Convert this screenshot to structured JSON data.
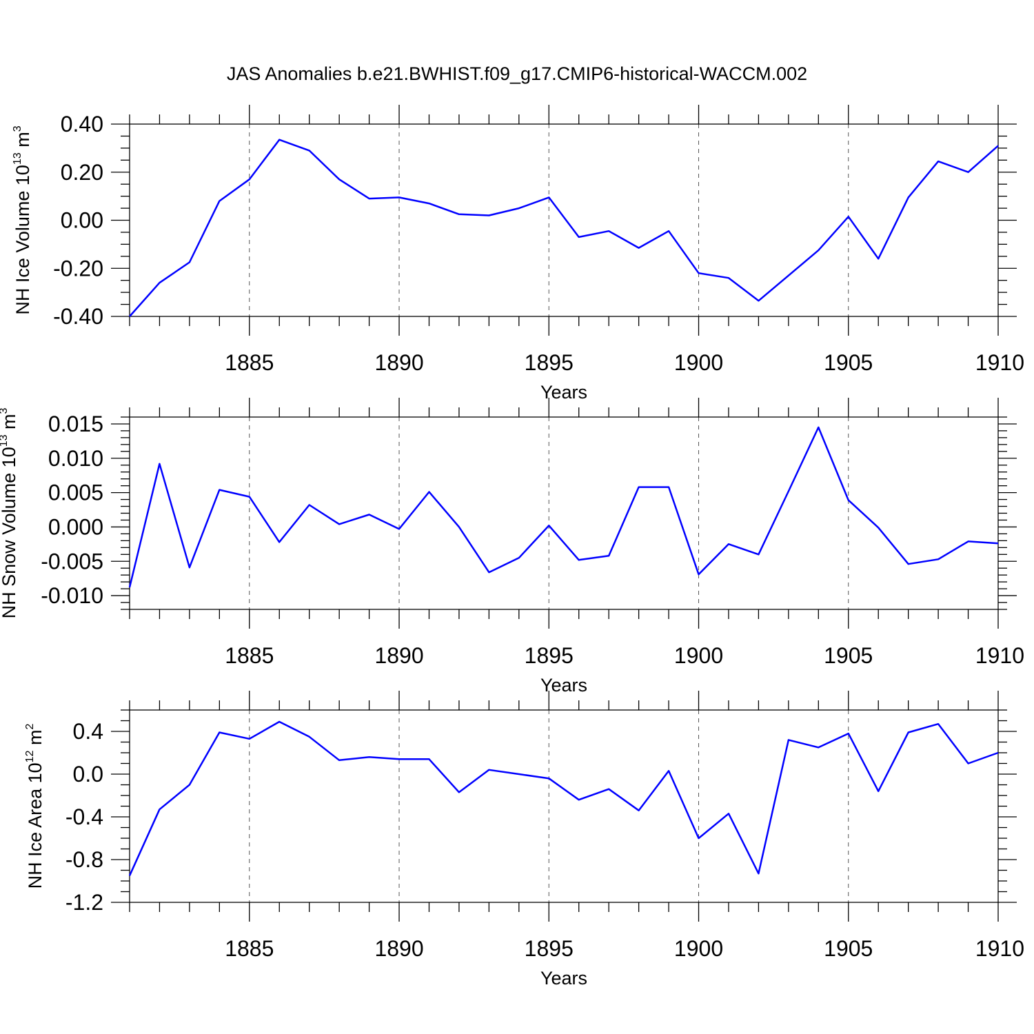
{
  "title": "JAS Anomalies b.e21.BWHIST.f09_g17.CMIP6-historical-WACCM.002",
  "colors": {
    "line": "#0000ff",
    "axis": "#000000",
    "grid": "#555555"
  },
  "chart_data": [
    {
      "type": "line",
      "ylabel_main": "NH Ice Volume 10",
      "ylabel_exp": "13",
      "ylabel_unit": " m",
      "ylabel_unit_exp": "3",
      "xlabel": "Years",
      "xlim": [
        1881,
        1910
      ],
      "ylim": [
        -0.4,
        0.4
      ],
      "x_ticks": [
        1885,
        1890,
        1895,
        1900,
        1905,
        1910
      ],
      "x_tick_labels": [
        "1885",
        "1890",
        "1895",
        "1900",
        "1905",
        "1910"
      ],
      "y_ticks": [
        -0.4,
        -0.2,
        0.0,
        0.2,
        0.4
      ],
      "y_tick_labels": [
        "-0.40",
        "-0.20",
        "0.00",
        "0.20",
        "0.40"
      ],
      "y_minor_step": 0.05,
      "grid": "vertical dashed at major x ticks",
      "x": [
        1881,
        1882,
        1883,
        1884,
        1885,
        1886,
        1887,
        1888,
        1889,
        1890,
        1891,
        1892,
        1893,
        1894,
        1895,
        1896,
        1897,
        1898,
        1899,
        1900,
        1901,
        1902,
        1903,
        1904,
        1905,
        1906,
        1907,
        1908,
        1909,
        1910
      ],
      "values": [
        -0.4,
        -0.26,
        -0.175,
        0.08,
        0.17,
        0.335,
        0.29,
        0.17,
        0.09,
        0.095,
        0.07,
        0.025,
        0.02,
        0.05,
        0.095,
        -0.07,
        -0.045,
        -0.115,
        -0.045,
        -0.22,
        -0.24,
        -0.335,
        -0.23,
        -0.125,
        0.015,
        -0.16,
        0.095,
        0.245,
        0.2,
        0.31
      ]
    },
    {
      "type": "line",
      "ylabel_main": "NH Snow Volume 10",
      "ylabel_exp": "13",
      "ylabel_unit": " m",
      "ylabel_unit_exp": "3",
      "xlabel": "Years",
      "xlim": [
        1881,
        1910
      ],
      "ylim": [
        -0.012,
        0.016
      ],
      "x_ticks": [
        1885,
        1890,
        1895,
        1900,
        1905,
        1910
      ],
      "x_tick_labels": [
        "1885",
        "1890",
        "1895",
        "1900",
        "1905",
        "1910"
      ],
      "y_ticks": [
        -0.01,
        -0.005,
        0.0,
        0.005,
        0.01,
        0.015
      ],
      "y_tick_labels": [
        "-0.010",
        "-0.005",
        "0.000",
        "0.005",
        "0.010",
        "0.015"
      ],
      "y_minor_step": 0.001,
      "grid": "vertical dashed at major x ticks",
      "x": [
        1881,
        1882,
        1883,
        1884,
        1885,
        1886,
        1887,
        1888,
        1889,
        1890,
        1891,
        1892,
        1893,
        1894,
        1895,
        1896,
        1897,
        1898,
        1899,
        1900,
        1901,
        1902,
        1903,
        1904,
        1905,
        1906,
        1907,
        1908,
        1909,
        1910
      ],
      "values": [
        -0.0088,
        0.0092,
        -0.0059,
        0.0054,
        0.0044,
        -0.0022,
        0.0032,
        0.0004,
        0.0018,
        -0.0003,
        0.0051,
        0.0,
        -0.0066,
        -0.0045,
        0.0002,
        -0.0048,
        -0.0042,
        0.0058,
        0.0058,
        -0.0069,
        -0.0025,
        -0.004,
        0.0052,
        0.0145,
        0.0039,
        -0.0001,
        -0.0054,
        -0.0047,
        -0.0021,
        -0.0024
      ]
    },
    {
      "type": "line",
      "ylabel_main": "NH Ice Area 10",
      "ylabel_exp": "12",
      "ylabel_unit": " m",
      "ylabel_unit_exp": "2",
      "xlabel": "Years",
      "xlim": [
        1881,
        1910
      ],
      "ylim": [
        -1.2,
        0.6
      ],
      "x_ticks": [
        1885,
        1890,
        1895,
        1900,
        1905,
        1910
      ],
      "x_tick_labels": [
        "1885",
        "1890",
        "1895",
        "1900",
        "1905",
        "1910"
      ],
      "y_ticks": [
        -1.2,
        -0.8,
        -0.4,
        0.0,
        0.4
      ],
      "y_tick_labels": [
        "-1.2",
        "-0.8",
        "-0.4",
        "0.0",
        "0.4"
      ],
      "y_minor_step": 0.1,
      "grid": "vertical dashed at major x ticks",
      "x": [
        1881,
        1882,
        1883,
        1884,
        1885,
        1886,
        1887,
        1888,
        1889,
        1890,
        1891,
        1892,
        1893,
        1894,
        1895,
        1896,
        1897,
        1898,
        1899,
        1900,
        1901,
        1902,
        1903,
        1904,
        1905,
        1906,
        1907,
        1908,
        1909,
        1910
      ],
      "values": [
        -0.95,
        -0.33,
        -0.1,
        0.39,
        0.33,
        0.49,
        0.35,
        0.13,
        0.16,
        0.14,
        0.14,
        -0.17,
        0.04,
        0.0,
        -0.04,
        -0.24,
        -0.14,
        -0.34,
        0.03,
        -0.6,
        -0.37,
        -0.93,
        0.32,
        0.25,
        0.38,
        -0.16,
        0.39,
        0.47,
        0.1,
        0.2
      ]
    }
  ]
}
